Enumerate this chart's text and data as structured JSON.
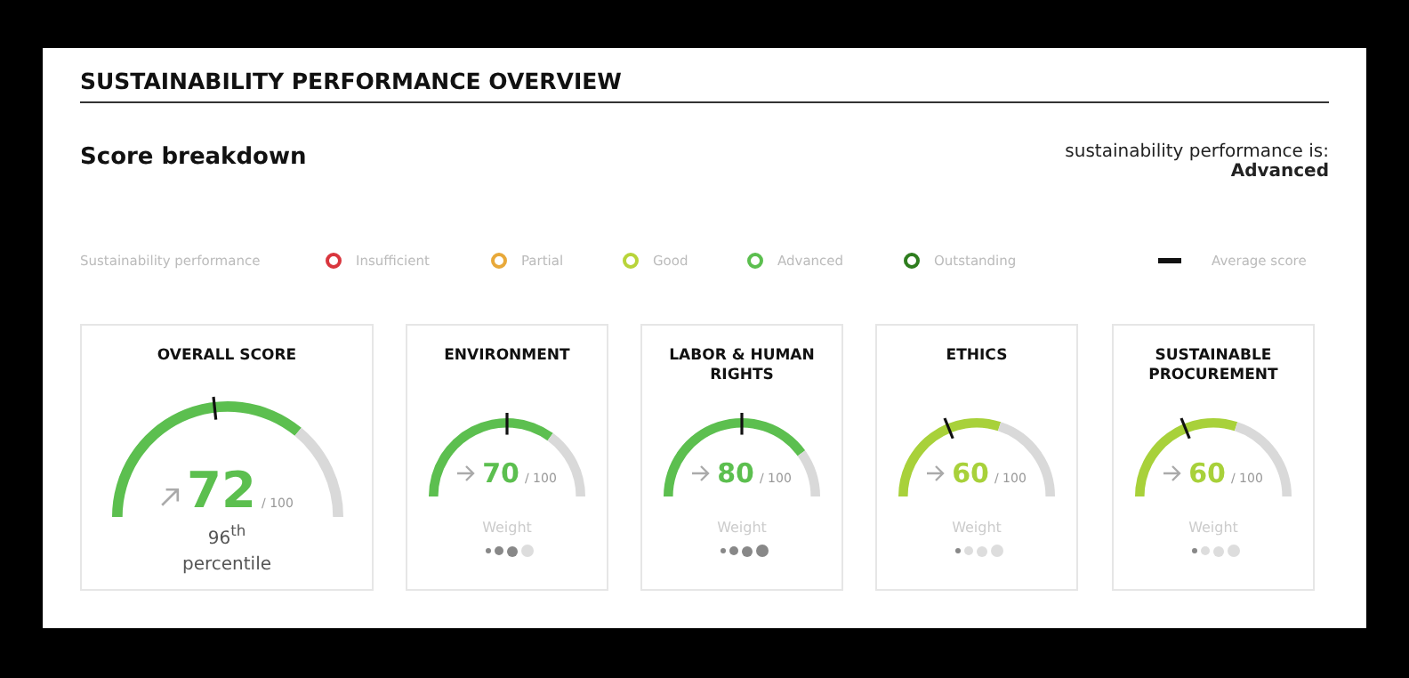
{
  "chart_data": [
    {
      "type": "other",
      "title": "SUSTAINABILITY PERFORMANCE OVERVIEW",
      "subtitle": "Score breakdown",
      "annotations": [
        "sustainability performance is:",
        "Advanced",
        "Sustainability performance",
        "Insufficient",
        "Partial",
        "Good",
        "Advanced",
        "Outstanding",
        "Average score"
      ]
    },
    {
      "type": "donut",
      "title": "OVERALL SCORE",
      "categories": [
        null,
        null
      ],
      "values": [
        72,
        28
      ],
      "colors": [
        "#5cbf4f",
        "#d9d9d9"
      ],
      "value_labels": [
        "72",
        null
      ],
      "annotations": [
        "/ 100",
        "96$^{th}$",
        "percentile"
      ]
    },
    {
      "type": "donut",
      "title": "ENVIRONMENT",
      "categories": [
        null,
        null
      ],
      "values": [
        70,
        30
      ],
      "colors": [
        "#5cbf4f",
        "#d9d9d9"
      ],
      "value_labels": [
        "70",
        null
      ],
      "annotations": [
        "/ 100",
        "Weight"
      ]
    },
    {
      "type": "donut",
      "title": "LABOR & HUMAN RIGHTS",
      "categories": [
        null,
        null
      ],
      "values": [
        80,
        20
      ],
      "colors": [
        "#5cbf4f",
        "#d9d9d9"
      ],
      "value_labels": [
        "80",
        null
      ],
      "annotations": [
        "/ 100",
        "Weight"
      ]
    },
    {
      "type": "donut",
      "title": "ETHICS",
      "categories": [
        null,
        null
      ],
      "values": [
        60,
        40
      ],
      "colors": [
        "#a8d13a",
        "#d9d9d9"
      ],
      "value_labels": [
        "60",
        null
      ],
      "annotations": [
        "/ 100",
        "Weight"
      ]
    },
    {
      "type": "donut",
      "title": "SUSTAINABLE PROCUREMENT",
      "categories": [
        null,
        null
      ],
      "values": [
        60,
        40
      ],
      "colors": [
        "#a8d13a",
        "#d9d9d9"
      ],
      "value_labels": [
        "60",
        null
      ],
      "annotations": [
        "/ 100",
        "Weight"
      ]
    }
  ]
}
